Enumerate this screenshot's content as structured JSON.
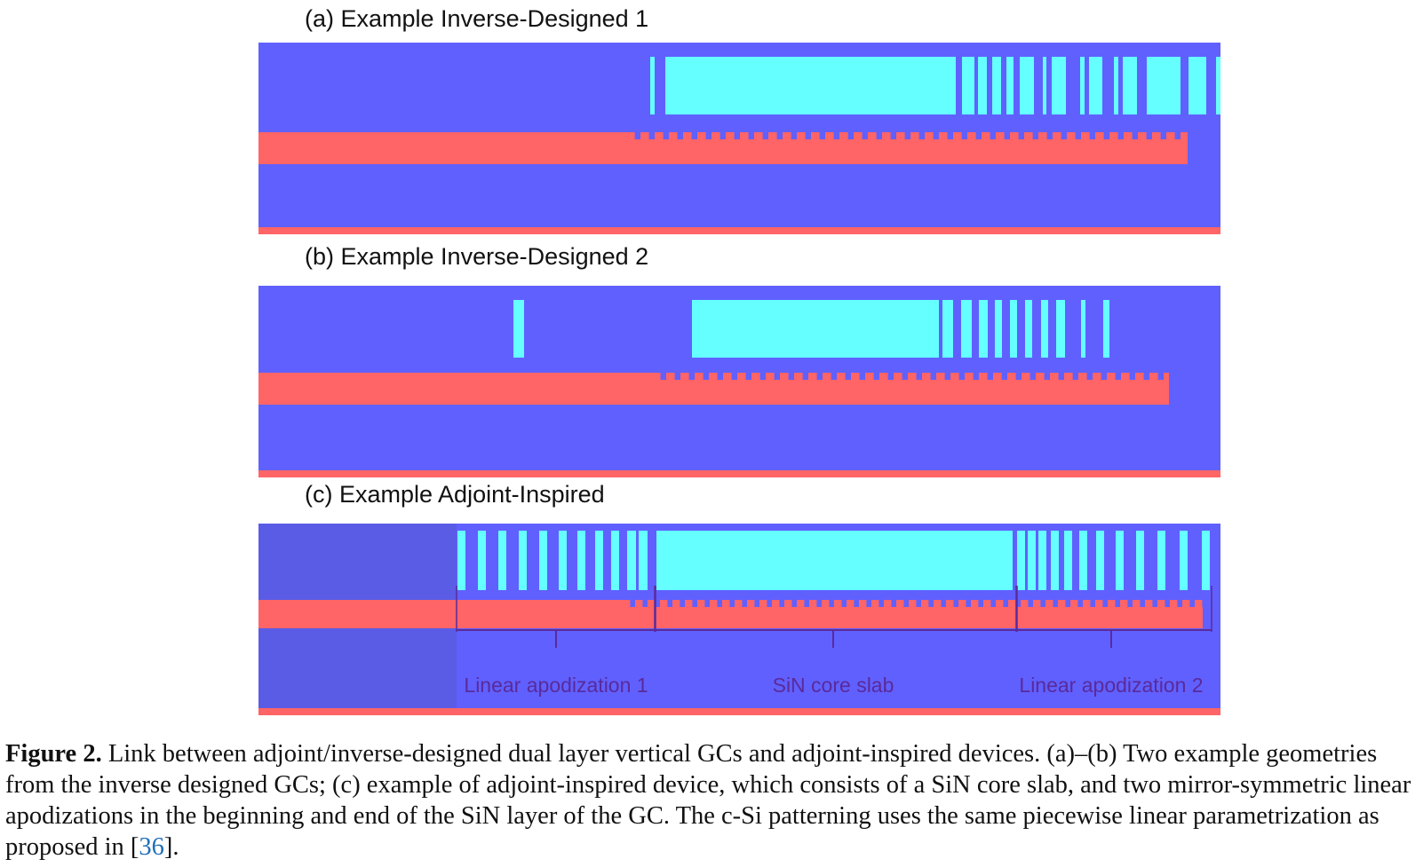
{
  "panels": [
    {
      "label": "(a) Example Inverse-Designed 1"
    },
    {
      "label": "(b) Example Inverse-Designed 2"
    },
    {
      "label": "(c) Example Adjoint-Inspired"
    }
  ],
  "annotations": {
    "apod1": "Linear apodization 1",
    "core": "SiN core slab",
    "apod2": "Linear apodization 2"
  },
  "caption": {
    "fig_label": "Figure 2.",
    "text_before_ref": " Link between adjoint/inverse-designed dual layer vertical GCs and adjoint-inspired devices. (a)–(b) Two example geometries from the inverse designed GCs; (c) example of adjoint-inspired device, which consists of a SiN core slab, and two mirror-symmetric linear apodizations in the beginning and end of the SiN layer of the GC. The c-Si patterning uses the same piecewise linear parametrization as proposed in [",
    "ref": "36",
    "text_after_ref": "]."
  },
  "colors": {
    "cladding": "#6060ff",
    "cladding_left_c": "#5a5ce6",
    "sin": "#66ffff",
    "silicon": "#ff6466",
    "annotation": "#5a2a9a"
  }
}
